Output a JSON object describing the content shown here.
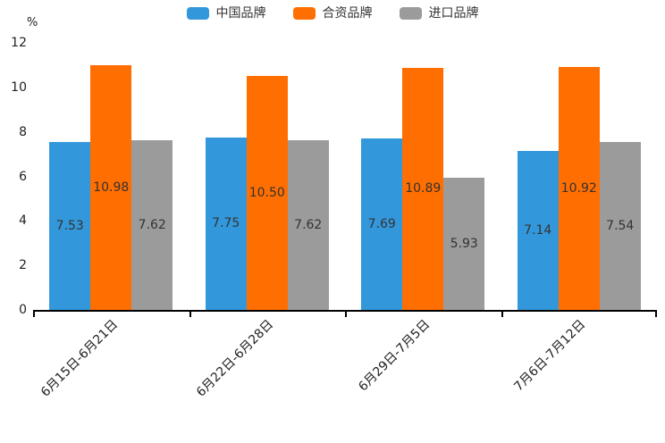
{
  "chart_data": {
    "type": "bar",
    "unit_label": "%",
    "categories": [
      "6月15日-6月21日",
      "6月22日-6月28日",
      "6月29日-7月5日",
      "7月6日-7月12日"
    ],
    "series": [
      {
        "name": "中国品牌",
        "color": "#3398DB",
        "values": [
          7.53,
          7.75,
          7.69,
          7.14
        ]
      },
      {
        "name": "合资品牌",
        "color": "#FF6E00",
        "values": [
          10.98,
          10.5,
          10.89,
          10.92
        ]
      },
      {
        "name": "进口品牌",
        "color": "#9B9B9B",
        "values": [
          7.62,
          7.62,
          5.93,
          7.54
        ]
      }
    ],
    "value_label_decimals": 2,
    "ylim": [
      0,
      12
    ],
    "yticks": [
      0,
      2,
      4,
      6,
      8,
      10,
      12
    ],
    "legend_position": "top",
    "grid": false,
    "axis_color": "#000000",
    "text_color": "#333333"
  }
}
